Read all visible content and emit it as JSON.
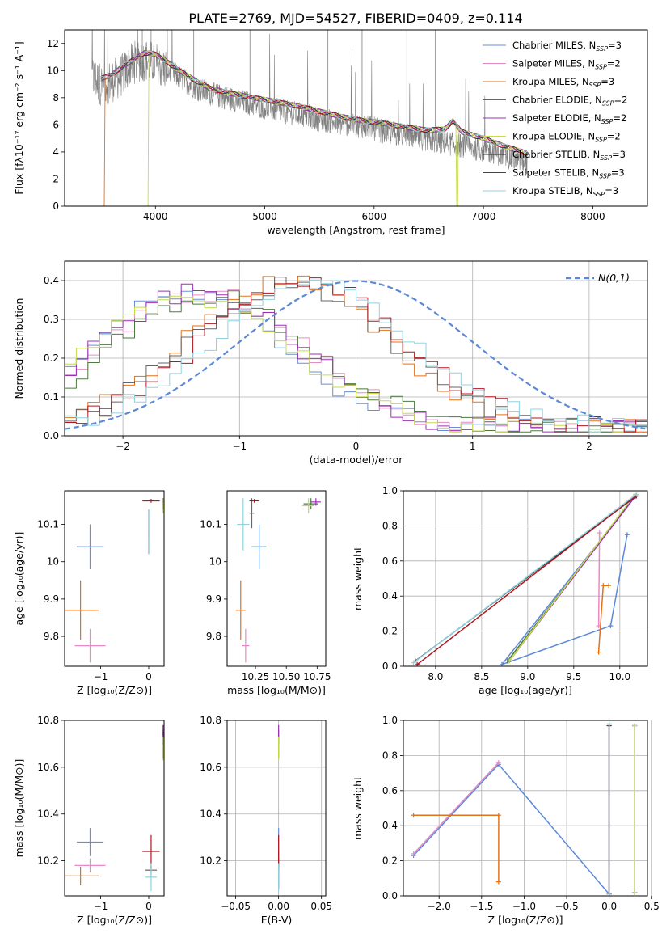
{
  "figure_title": "PLATE=2769, MJD=54527, FIBERID=0409, z=0.114",
  "chart_data": [
    {
      "id": "spectrum",
      "type": "line",
      "title": "PLATE=2769, MJD=54527, FIBERID=0409, z=0.114",
      "xlabel": "wavelength [Angstrom, rest frame]",
      "ylabel": "Flux [fλ10⁻¹⁷ erg cm⁻² s⁻¹ A⁻¹]",
      "xlim": [
        3170,
        8500
      ],
      "ylim": [
        0,
        13
      ],
      "xticks": [
        4000,
        5000,
        6000,
        7000,
        8000
      ],
      "yticks": [
        0,
        2,
        4,
        6,
        8,
        10,
        12
      ],
      "grid": false,
      "legend_position": "top-right",
      "legend": [
        {
          "label": "Chabrier MILES, N_SSP=3",
          "color": "#6a8ed6"
        },
        {
          "label": "Salpeter MILES, N_SSP=2",
          "color": "#e88ac6"
        },
        {
          "label": "Kroupa MILES, N_SSP=3",
          "color": "#e0731b"
        },
        {
          "label": "Chabrier ELODIE, N_SSP=2",
          "color": "#4d7a3e"
        },
        {
          "label": "Salpeter ELODIE, N_SSP=2",
          "color": "#9a31b4"
        },
        {
          "label": "Kroupa ELODIE, N_SSP=2",
          "color": "#c4dc4a"
        },
        {
          "label": "Chabrier STELIB, N_SSP=3",
          "color": "#333333"
        },
        {
          "label": "Salpeter STELIB, N_SSP=3",
          "color": "#b0161e"
        },
        {
          "label": "Kroupa STELIB, N_SSP=3",
          "color": "#8fd3e0"
        }
      ],
      "data_series": {
        "name": "data",
        "color": "#808080"
      },
      "data_trend": {
        "x": [
          3420,
          3500,
          3600,
          3700,
          3800,
          3900,
          4000,
          4100,
          4200,
          4300,
          4400,
          4500,
          4700,
          4900,
          5100,
          5300,
          5500,
          5700,
          5900,
          6100,
          6300,
          6500,
          6700,
          6900,
          7100,
          7300,
          7400
        ],
        "y": [
          9.6,
          9.0,
          9.2,
          9.7,
          10.6,
          10.8,
          10.5,
          10.1,
          9.6,
          9.1,
          8.6,
          8.3,
          7.9,
          7.5,
          7.1,
          6.8,
          6.4,
          6.1,
          5.9,
          5.5,
          5.2,
          4.9,
          4.6,
          4.3,
          4.0,
          3.4,
          3.2
        ]
      },
      "model_trend": {
        "x": [
          3500,
          3600,
          3700,
          3800,
          3900,
          4000,
          4100,
          4200,
          4300,
          4400,
          4500,
          4700,
          4900,
          5100,
          5300,
          5500,
          5700,
          5900,
          6100,
          6300,
          6500,
          6650,
          6720,
          6800,
          7000,
          7200,
          7400
        ],
        "y": [
          9.4,
          9.7,
          10.3,
          10.8,
          11.3,
          11.2,
          10.7,
          10.1,
          9.6,
          9.1,
          8.7,
          8.3,
          8.0,
          7.7,
          7.4,
          7.0,
          6.6,
          6.3,
          6.1,
          5.8,
          5.6,
          5.7,
          6.3,
          5.5,
          5.0,
          4.4,
          3.9
        ]
      },
      "model_cutoffs": [
        {
          "series": "Kroupa MILES",
          "x_start": 3535
        },
        {
          "series": "Kroupa ELODIE",
          "x_start": 3940,
          "x_dip": 6760
        }
      ]
    },
    {
      "id": "residual_histogram",
      "type": "line",
      "xlabel": "(data-model)/error",
      "ylabel": "Normed distribution",
      "xlim": [
        -2.5,
        2.5
      ],
      "ylim": [
        0,
        0.45
      ],
      "xticks": [
        -2,
        -1,
        0,
        1,
        2
      ],
      "yticks": [
        0.0,
        0.1,
        0.2,
        0.3,
        0.4
      ],
      "grid": true,
      "legend_position": "top-right",
      "reference_curve": {
        "label": "N(0,1)",
        "mean": 0,
        "sigma": 1,
        "color": "#5b88d8",
        "style": "dashed"
      },
      "bin_width": 0.1,
      "series": [
        {
          "name": "Chabrier MILES",
          "color": "#6a8ed6",
          "center": -1.45,
          "peak": 0.34
        },
        {
          "name": "Salpeter MILES",
          "color": "#e88ac6",
          "center": -1.3,
          "peak": 0.35
        },
        {
          "name": "Kroupa MILES",
          "color": "#e0731b",
          "center": -0.6,
          "peak": 0.38
        },
        {
          "name": "Chabrier ELODIE",
          "color": "#4d7a3e",
          "center": -1.25,
          "peak": 0.34
        },
        {
          "name": "Salpeter ELODIE",
          "color": "#9a31b4",
          "center": -1.35,
          "peak": 0.35
        },
        {
          "name": "Kroupa ELODIE",
          "color": "#c4dc4a",
          "center": -1.4,
          "peak": 0.34
        },
        {
          "name": "Chabrier STELIB",
          "color": "#666666",
          "center": -0.55,
          "peak": 0.37
        },
        {
          "name": "Salpeter STELIB",
          "color": "#b0161e",
          "center": -0.45,
          "peak": 0.38
        },
        {
          "name": "Kroupa STELIB",
          "color": "#8fd3e0",
          "center": -0.35,
          "peak": 0.37
        }
      ]
    },
    {
      "id": "age_vs_Z",
      "type": "scatter",
      "xlabel": "Z [log₁₀(Z/Z⊙)]",
      "ylabel": "age  [log₁₀(age/yr)]",
      "xlim": [
        -1.75,
        0.32
      ],
      "ylim": [
        9.72,
        10.19
      ],
      "xticks": [
        -1,
        0
      ],
      "yticks": [
        9.8,
        9.9,
        10.0,
        10.1
      ],
      "grid": false,
      "points": [
        {
          "series": "Chabrier MILES",
          "color": "#6a8ed6",
          "x": -1.22,
          "y": 10.04,
          "xerr": 0.28,
          "yerr": 0.06
        },
        {
          "series": "Salpeter MILES",
          "color": "#e88ac6",
          "x": -1.22,
          "y": 9.775,
          "xerr": 0.32,
          "yerr": 0.045
        },
        {
          "series": "Kroupa MILES",
          "color": "#e0731b",
          "x": -1.42,
          "y": 9.87,
          "xerr": 0.38,
          "yerr": 0.08
        },
        {
          "series": "Chabrier ELODIE",
          "color": "#4d7a3e",
          "x": 0.3,
          "y": 10.155,
          "xerr": 0.02,
          "yerr": 0.015
        },
        {
          "series": "Salpeter ELODIE",
          "color": "#9a31b4",
          "x": 0.3,
          "y": 10.16,
          "xerr": 0.02,
          "yerr": 0.01
        },
        {
          "series": "Kroupa ELODIE",
          "color": "#c4dc4a",
          "x": 0.3,
          "y": 10.15,
          "xerr": 0.02,
          "yerr": 0.02
        },
        {
          "series": "Chabrier STELIB",
          "color": "#666666",
          "x": 0.0,
          "y": 10.08,
          "xerr": 0.01,
          "yerr": 0.06
        },
        {
          "series": "Salpeter STELIB",
          "color": "#b0161e",
          "x": 0.05,
          "y": 10.163,
          "xerr": 0.18,
          "yerr": 0.005
        },
        {
          "series": "Kroupa STELIB",
          "color": "#8fd3e0",
          "x": 0.0,
          "y": 10.08,
          "xerr": 0.01,
          "yerr": 0.06
        }
      ]
    },
    {
      "id": "age_vs_mass",
      "type": "scatter",
      "xlabel": "mass [log₁₀(M/M⊙)]",
      "ylabel": "",
      "xlim": [
        10.02,
        10.82
      ],
      "ylim": [
        9.72,
        10.19
      ],
      "xticks": [
        10.25,
        10.5,
        10.75
      ],
      "xticklabels": [
        "10.25",
        "10.50",
        "10.75"
      ],
      "yticks": [
        9.8,
        9.9,
        10.0,
        10.1
      ],
      "grid": false,
      "points": [
        {
          "series": "Chabrier MILES",
          "color": "#6a8ed6",
          "x": 10.28,
          "y": 10.04,
          "xerr": 0.06,
          "yerr": 0.06
        },
        {
          "series": "Salpeter MILES",
          "color": "#e88ac6",
          "x": 10.17,
          "y": 9.775,
          "xerr": 0.03,
          "yerr": 0.045
        },
        {
          "series": "Kroupa MILES",
          "color": "#e0731b",
          "x": 10.13,
          "y": 9.87,
          "xerr": 0.04,
          "yerr": 0.08
        },
        {
          "series": "Chabrier ELODIE",
          "color": "#4d7a3e",
          "x": 10.7,
          "y": 10.155,
          "xerr": 0.06,
          "yerr": 0.015
        },
        {
          "series": "Salpeter ELODIE",
          "color": "#9a31b4",
          "x": 10.74,
          "y": 10.16,
          "xerr": 0.04,
          "yerr": 0.01
        },
        {
          "series": "Kroupa ELODIE",
          "color": "#c4dc4a",
          "x": 10.68,
          "y": 10.15,
          "xerr": 0.05,
          "yerr": 0.02
        },
        {
          "series": "Chabrier STELIB",
          "color": "#666666",
          "x": 10.22,
          "y": 10.13,
          "xerr": 0.02,
          "yerr": 0.04
        },
        {
          "series": "Salpeter STELIB",
          "color": "#b0161e",
          "x": 10.24,
          "y": 10.163,
          "xerr": 0.04,
          "yerr": 0.005
        },
        {
          "series": "Kroupa STELIB",
          "color": "#8fd3e0",
          "x": 10.15,
          "y": 10.1,
          "xerr": 0.05,
          "yerr": 0.07
        }
      ]
    },
    {
      "id": "mass_weight_vs_age",
      "type": "line",
      "xlabel": "age  [log₁₀(age/yr)]",
      "ylabel": "mass weight",
      "xlim": [
        7.65,
        10.3
      ],
      "ylim": [
        0,
        1.0
      ],
      "xticks": [
        8.0,
        8.5,
        9.0,
        9.5,
        10.0
      ],
      "xticklabels": [
        "8.0",
        "8.5",
        "9.0",
        "9.5",
        "10.0"
      ],
      "yticks": [
        0.0,
        0.2,
        0.4,
        0.6,
        0.8,
        1.0
      ],
      "grid": true,
      "series": [
        {
          "name": "Chabrier MILES",
          "color": "#5b88d8",
          "x": [
            10.17,
            8.72,
            9.9,
            10.08
          ],
          "y": [
            0.97,
            0.01,
            0.23,
            0.75
          ]
        },
        {
          "name": "Salpeter MILES",
          "color": "#e88ac6",
          "x": [
            9.78,
            9.77
          ],
          "y": [
            0.76,
            0.23
          ]
        },
        {
          "name": "Kroupa MILES",
          "color": "#e0731b",
          "x": [
            9.77,
            9.82,
            9.88
          ],
          "y": [
            0.08,
            0.46,
            0.46
          ]
        },
        {
          "name": "Chabrier ELODIE",
          "color": "#4d7a3e",
          "x": [
            8.78,
            10.17
          ],
          "y": [
            0.03,
            0.97
          ]
        },
        {
          "name": "Salpeter ELODIE",
          "color": "#9a31b4",
          "x": [
            8.8,
            10.17
          ],
          "y": [
            0.03,
            0.97
          ]
        },
        {
          "name": "Kroupa ELODIE",
          "color": "#c4dc4a",
          "x": [
            8.8,
            10.15
          ],
          "y": [
            0.03,
            0.97
          ]
        },
        {
          "name": "Chabrier STELIB",
          "color": "#333333",
          "x": [
            7.78,
            10.18
          ],
          "y": [
            0.03,
            0.97
          ]
        },
        {
          "name": "Salpeter STELIB",
          "color": "#b0161e",
          "x": [
            7.8,
            10.17
          ],
          "y": [
            0.01,
            0.97
          ]
        },
        {
          "name": "Kroupa STELIB",
          "color": "#8fd3e0",
          "x": [
            7.76,
            10.18
          ],
          "y": [
            0.02,
            0.98
          ]
        }
      ]
    },
    {
      "id": "mass_vs_Z",
      "type": "scatter",
      "xlabel": "Z [log₁₀(Z/Z⊙)]",
      "ylabel": "mass [log₁₀(M/M⊙)]",
      "xlim": [
        -1.75,
        0.32
      ],
      "ylim": [
        10.05,
        10.8
      ],
      "xticks": [
        -1,
        0
      ],
      "yticks": [
        10.2,
        10.4,
        10.6,
        10.8
      ],
      "grid": false,
      "points": [
        {
          "series": "Chabrier MILES",
          "color": "#6a8ed6",
          "x": -1.22,
          "y": 10.28,
          "xerr": 0.28,
          "yerr": 0.06
        },
        {
          "series": "Salpeter MILES",
          "color": "#e88ac6",
          "x": -1.22,
          "y": 10.18,
          "xerr": 0.32,
          "yerr": 0.03
        },
        {
          "series": "Kroupa MILES",
          "color": "#e0731b",
          "x": -1.42,
          "y": 10.135,
          "xerr": 0.38,
          "yerr": 0.04
        },
        {
          "series": "Chabrier ELODIE",
          "color": "#4d7a3e",
          "x": 0.3,
          "y": 10.7,
          "xerr": 0.02,
          "yerr": 0.06
        },
        {
          "series": "Salpeter ELODIE",
          "color": "#9a31b4",
          "x": 0.3,
          "y": 10.74,
          "xerr": 0.02,
          "yerr": 0.04
        },
        {
          "series": "Kroupa ELODIE",
          "color": "#c4dc4a",
          "x": 0.3,
          "y": 10.68,
          "xerr": 0.02,
          "yerr": 0.05
        },
        {
          "series": "Chabrier STELIB",
          "color": "#666666",
          "x": 0.05,
          "y": 10.16,
          "xerr": 0.12,
          "yerr": 0.02
        },
        {
          "series": "Salpeter STELIB",
          "color": "#b0161e",
          "x": 0.05,
          "y": 10.24,
          "xerr": 0.18,
          "yerr": 0.07
        },
        {
          "series": "Kroupa STELIB",
          "color": "#8fd3e0",
          "x": 0.05,
          "y": 10.13,
          "xerr": 0.12,
          "yerr": 0.06
        }
      ]
    },
    {
      "id": "mass_vs_EBV",
      "type": "scatter",
      "xlabel": "E(B-V)",
      "ylabel": "",
      "xlim": [
        -0.06,
        0.055
      ],
      "ylim": [
        10.05,
        10.8
      ],
      "xticks": [
        -0.05,
        0.0,
        0.05
      ],
      "xticklabels": [
        "−0.05",
        "0.00",
        "0.05"
      ],
      "yticks": [
        10.2,
        10.4,
        10.6,
        10.8
      ],
      "grid": true,
      "points": [
        {
          "series": "Chabrier MILES",
          "color": "#6a8ed6",
          "x": 0.0,
          "y": 10.28,
          "xerr": 0.0,
          "yerr": 0.06
        },
        {
          "series": "Salpeter MILES",
          "color": "#e88ac6",
          "x": 0.0,
          "y": 10.18,
          "xerr": 0.0,
          "yerr": 0.03
        },
        {
          "series": "Kroupa MILES",
          "color": "#e0731b",
          "x": 0.0,
          "y": 10.135,
          "xerr": 0.0,
          "yerr": 0.04
        },
        {
          "series": "Chabrier ELODIE",
          "color": "#4d7a3e",
          "x": 0.0,
          "y": 10.7,
          "xerr": 0.0,
          "yerr": 0.06
        },
        {
          "series": "Salpeter ELODIE",
          "color": "#9a31b4",
          "x": 0.0,
          "y": 10.74,
          "xerr": 0.0,
          "yerr": 0.04
        },
        {
          "series": "Kroupa ELODIE",
          "color": "#c4dc4a",
          "x": 0.0,
          "y": 10.68,
          "xerr": 0.0,
          "yerr": 0.05
        },
        {
          "series": "Chabrier STELIB",
          "color": "#666666",
          "x": 0.0,
          "y": 10.16,
          "xerr": 0.0,
          "yerr": 0.08
        },
        {
          "series": "Salpeter STELIB",
          "color": "#b0161e",
          "x": 0.0,
          "y": 10.24,
          "xerr": 0.0,
          "yerr": 0.07
        },
        {
          "series": "Kroupa STELIB",
          "color": "#8fd3e0",
          "x": 0.0,
          "y": 10.13,
          "xerr": 0.0,
          "yerr": 0.06
        }
      ]
    },
    {
      "id": "mass_weight_vs_Z",
      "type": "line",
      "xlabel": "Z [log₁₀(Z/Z⊙)]",
      "ylabel": "mass weight",
      "xlim": [
        -2.42,
        0.45
      ],
      "ylim": [
        0,
        1.0
      ],
      "xticks": [
        -2.0,
        -1.5,
        -1.0,
        -0.5,
        0.0,
        0.5
      ],
      "xticklabels": [
        "−2.0",
        "−1.5",
        "−1.0",
        "−0.5",
        "0.0",
        "0.5"
      ],
      "yticks": [
        0.0,
        0.2,
        0.4,
        0.6,
        0.8,
        1.0
      ],
      "grid": true,
      "series": [
        {
          "name": "Chabrier MILES",
          "color": "#5b88d8",
          "x": [
            -2.3,
            -1.3,
            0.0
          ],
          "y": [
            0.23,
            0.75,
            0.01
          ]
        },
        {
          "name": "Salpeter MILES",
          "color": "#e88ac6",
          "x": [
            -2.3,
            -1.3
          ],
          "y": [
            0.24,
            0.76
          ]
        },
        {
          "name": "Kroupa MILES",
          "color": "#e0731b",
          "x": [
            -2.3,
            -1.3,
            -1.3
          ],
          "y": [
            0.46,
            0.46,
            0.08
          ]
        },
        {
          "name": "Chabrier ELODIE",
          "color": "#4d7a3e",
          "x": [
            0.3,
            0.3
          ],
          "y": [
            0.02,
            0.97
          ]
        },
        {
          "name": "Salpeter ELODIE",
          "color": "#9a31b4",
          "x": [
            0.3,
            0.3
          ],
          "y": [
            0.02,
            0.97
          ]
        },
        {
          "name": "Kroupa ELODIE",
          "color": "#c4dc4a",
          "x": [
            0.3,
            0.3
          ],
          "y": [
            0.02,
            0.97
          ]
        },
        {
          "name": "Chabrier STELIB",
          "color": "#333333",
          "x": [
            0.0,
            0.0
          ],
          "y": [
            0.01,
            0.97
          ]
        },
        {
          "name": "Salpeter STELIB",
          "color": "#b0161e",
          "x": [
            0.0,
            0.0
          ],
          "y": [
            0.01,
            0.97
          ]
        },
        {
          "name": "Kroupa STELIB",
          "color": "#8fd3e0",
          "x": [
            0.0,
            0.0
          ],
          "y": [
            0.01,
            0.98
          ]
        }
      ]
    }
  ]
}
